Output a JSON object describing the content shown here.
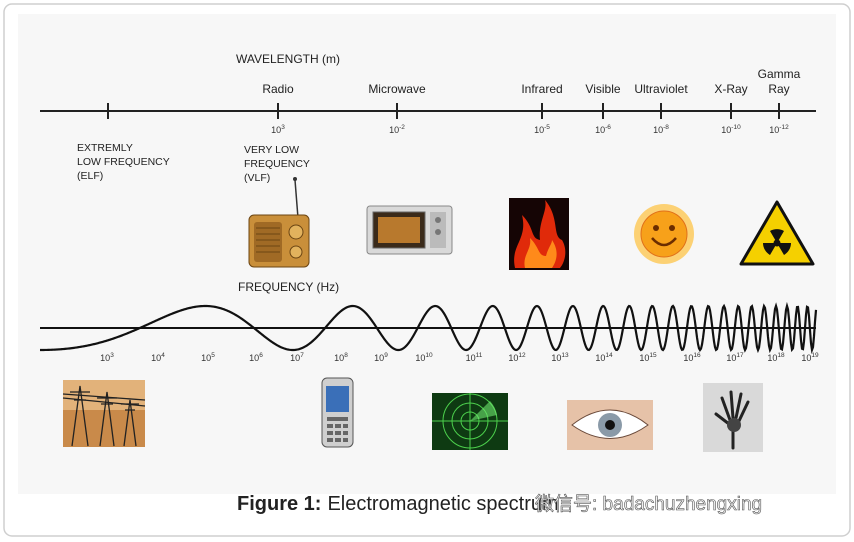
{
  "wavelength": {
    "title": "WAVELENGTH (m)",
    "bands": [
      {
        "name": [
          "Radio"
        ],
        "tick": {
          "base": "10",
          "exp": "3"
        }
      },
      {
        "name": [
          "Microwave"
        ],
        "tick": {
          "base": "10",
          "exp": "-2"
        }
      },
      {
        "name": [
          "Infrared"
        ],
        "tick": {
          "base": "10",
          "exp": "-5"
        }
      },
      {
        "name": [
          "Visible"
        ],
        "tick": {
          "base": "10",
          "exp": "-6"
        }
      },
      {
        "name": [
          "Ultraviolet"
        ],
        "tick": {
          "base": "10",
          "exp": "-8"
        }
      },
      {
        "name": [
          "X-Ray"
        ],
        "tick": {
          "base": "10",
          "exp": "-10"
        }
      },
      {
        "name": [
          "Gamma",
          "Ray"
        ],
        "tick": {
          "base": "10",
          "exp": "-12"
        }
      }
    ]
  },
  "elf_label": [
    "EXTREMLY",
    "LOW FREQUENCY",
    "(ELF)"
  ],
  "vlf_label": [
    "VERY LOW",
    "FREQUENCY",
    "(VLF)"
  ],
  "frequency": {
    "title": "FREQUENCY (Hz)",
    "ticks": [
      {
        "base": "10",
        "exp": "3"
      },
      {
        "base": "10",
        "exp": "4"
      },
      {
        "base": "10",
        "exp": "5"
      },
      {
        "base": "10",
        "exp": "6"
      },
      {
        "base": "10",
        "exp": "7"
      },
      {
        "base": "10",
        "exp": "8"
      },
      {
        "base": "10",
        "exp": "9"
      },
      {
        "base": "10",
        "exp": "10"
      },
      {
        "base": "10",
        "exp": "11"
      },
      {
        "base": "10",
        "exp": "12"
      },
      {
        "base": "10",
        "exp": "13"
      },
      {
        "base": "10",
        "exp": "14"
      },
      {
        "base": "10",
        "exp": "15"
      },
      {
        "base": "10",
        "exp": "16"
      },
      {
        "base": "10",
        "exp": "17"
      },
      {
        "base": "10",
        "exp": "18"
      },
      {
        "base": "10",
        "exp": "19"
      }
    ]
  },
  "caption": {
    "label": "Figure 1:",
    "text": "Electromagnetic spectrum"
  },
  "watermark": "微信号: badachuzhengxing"
}
